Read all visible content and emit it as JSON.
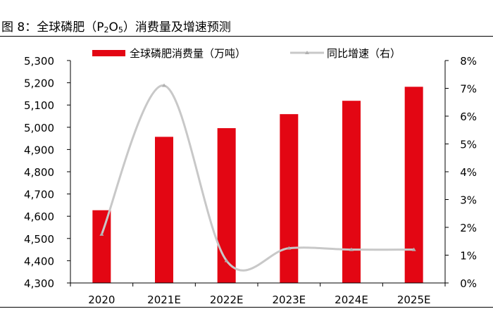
{
  "title": {
    "prefix": "图 8：全球磷肥（P",
    "sub1": "2",
    "mid": "O",
    "sub2": "5",
    "suffix": "）消费量及增速预测"
  },
  "chart_data": {
    "type": "bar",
    "categories": [
      "2020",
      "2021E",
      "2022E",
      "2023E",
      "2024E",
      "2025E"
    ],
    "series": [
      {
        "name": "全球磷肥消费量（万吨）",
        "kind": "bar",
        "axis": "left",
        "color": "#e30613",
        "values": [
          4627,
          4957,
          4996,
          5059,
          5119,
          5182
        ]
      },
      {
        "name": "同比增速（右）",
        "kind": "line",
        "axis": "right",
        "color": "#c8c8c8",
        "values": [
          1.75,
          7.1,
          0.8,
          1.25,
          1.2,
          1.2
        ]
      }
    ],
    "yleft": {
      "min": 4300,
      "max": 5300,
      "ticks": [
        "4,300",
        "4,400",
        "4,500",
        "4,600",
        "4,700",
        "4,800",
        "4,900",
        "5,000",
        "5,100",
        "5,200",
        "5,300"
      ]
    },
    "yright": {
      "min": 0,
      "max": 8,
      "ticks": [
        "0%",
        "1%",
        "2%",
        "3%",
        "4%",
        "5%",
        "6%",
        "7%",
        "8%"
      ]
    },
    "legend_position": "top",
    "grid": false
  }
}
